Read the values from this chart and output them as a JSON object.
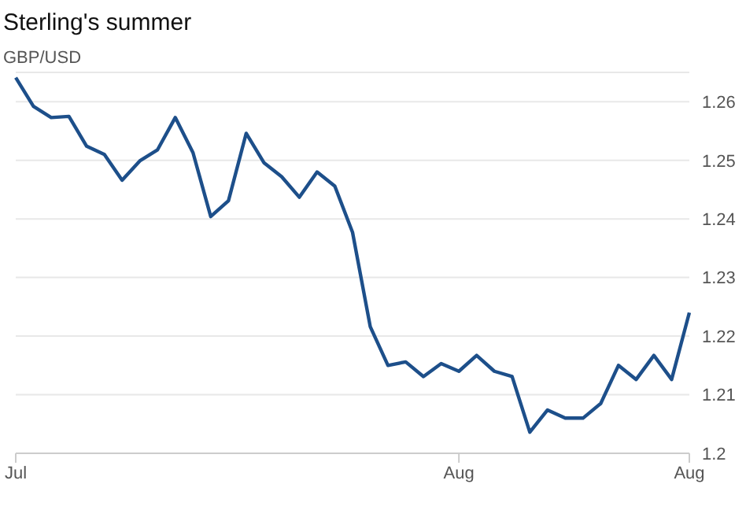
{
  "chart_data": {
    "type": "line",
    "title": "Sterling's summer",
    "subtitle": "GBP/USD",
    "categories": [
      "Jul",
      null,
      null,
      null,
      null,
      null,
      null,
      null,
      null,
      null,
      null,
      null,
      null,
      null,
      null,
      null,
      null,
      null,
      null,
      null,
      null,
      null,
      null,
      null,
      null,
      "Aug",
      null,
      null,
      null,
      null,
      null,
      null,
      null,
      null,
      null,
      null,
      null,
      null,
      "Aug"
    ],
    "series": [
      {
        "color": "#1d4f8a",
        "values": [
          1.2641,
          1.2592,
          1.2573,
          1.2575,
          1.2524,
          1.251,
          1.2466,
          1.2499,
          1.2518,
          1.2573,
          1.2513,
          1.2404,
          1.2431,
          1.2546,
          1.2496,
          1.2472,
          1.2437,
          1.248,
          1.2456,
          1.2377,
          1.2216,
          1.215,
          1.2156,
          1.2131,
          1.2153,
          1.214,
          1.2167,
          1.214,
          1.2131,
          1.2036,
          1.2074,
          1.206,
          1.206,
          1.2085,
          1.215,
          1.2126,
          1.2167,
          1.2126,
          1.224
        ]
      }
    ],
    "ylim": [
      1.2,
      1.265
    ],
    "yticks": [
      1.2,
      1.21,
      1.22,
      1.23,
      1.24,
      1.25,
      1.26
    ],
    "grid": "y",
    "legend": false,
    "marker": "none",
    "line_style": "solid"
  }
}
